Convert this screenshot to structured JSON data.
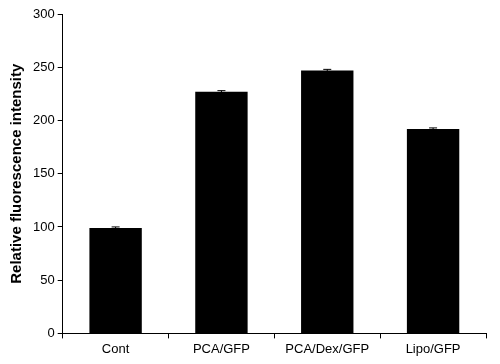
{
  "chart_data": {
    "type": "bar",
    "y_label": "Relative fluorescence intensity",
    "categories": [
      "Cont",
      "PCA/GFP",
      "PCA/Dex/GFP",
      "Lipo/GFP"
    ],
    "values": [
      99,
      227,
      247,
      192
    ],
    "errors": [
      1,
      1,
      1,
      1
    ],
    "color": "#000000",
    "ylim": [
      0,
      300
    ],
    "yticks": [
      0,
      50,
      100,
      150,
      200,
      250,
      300
    ],
    "grid": false
  }
}
